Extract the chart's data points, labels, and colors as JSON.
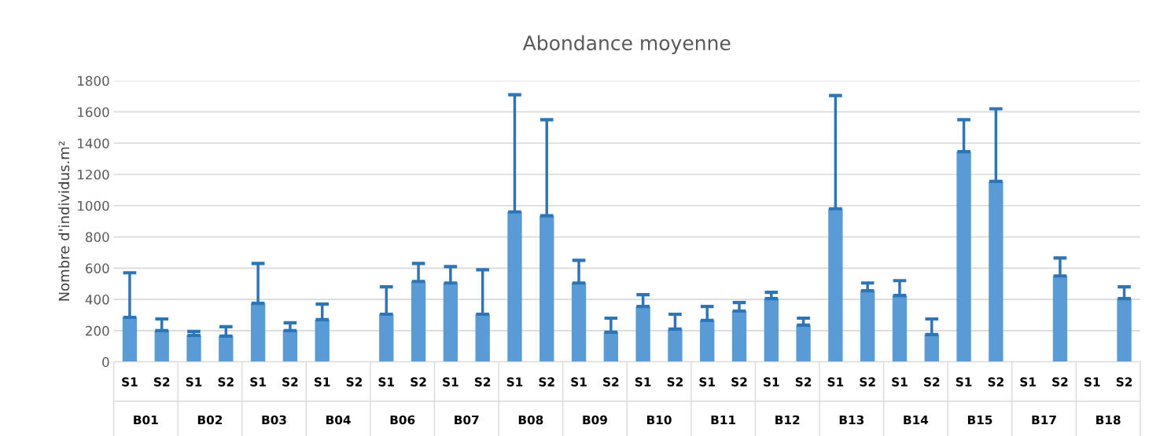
{
  "chart_data": {
    "type": "bar",
    "title": "Abondance moyenne",
    "ylabel": "Nombre d'individus.m²",
    "categories": [
      "S1",
      "S2",
      "S1",
      "S2",
      "S1",
      "S2",
      "S1",
      "S2",
      "S1",
      "S2",
      "S1",
      "S2",
      "S1",
      "S2",
      "S1",
      "S2",
      "S1",
      "S2",
      "S1",
      "S2",
      "S1",
      "S2",
      "S1",
      "S2",
      "S1",
      "S2",
      "S1",
      "S2",
      "S1",
      "S2",
      "S1",
      "S2"
    ],
    "annotations": [
      "B01",
      "B02",
      "B03",
      "B04",
      "B06",
      "B07",
      "B08",
      "B09",
      "B10",
      "B11",
      "B12",
      "B13",
      "B14",
      "B15",
      "B17",
      "B18"
    ],
    "color": "#5b9bd5",
    "values": [
      285,
      200,
      170,
      165,
      375,
      200,
      270,
      null,
      305,
      515,
      505,
      305,
      960,
      935,
      505,
      190,
      355,
      210,
      265,
      325,
      405,
      235,
      980,
      455,
      425,
      175,
      1345,
      1155,
      null,
      550,
      null,
      405
    ],
    "errors": [
      [
        285,
        570
      ],
      [
        200,
        275
      ],
      [
        170,
        195
      ],
      [
        165,
        225
      ],
      [
        375,
        630
      ],
      [
        200,
        250
      ],
      [
        270,
        370
      ],
      null,
      [
        305,
        480
      ],
      [
        515,
        630
      ],
      [
        505,
        610
      ],
      [
        305,
        590
      ],
      [
        960,
        1710
      ],
      [
        935,
        1550
      ],
      [
        505,
        650
      ],
      [
        190,
        280
      ],
      [
        355,
        430
      ],
      [
        210,
        305
      ],
      [
        265,
        355
      ],
      [
        325,
        380
      ],
      [
        405,
        445
      ],
      [
        235,
        280
      ],
      [
        980,
        1705
      ],
      [
        455,
        505
      ],
      [
        425,
        520
      ],
      [
        175,
        275
      ],
      [
        1345,
        1550
      ],
      [
        1155,
        1620
      ],
      null,
      [
        550,
        665
      ],
      null,
      [
        405,
        480
      ]
    ],
    "ylim": [
      0,
      1800
    ],
    "yticks": [
      0,
      200,
      400,
      600,
      800,
      1000,
      1200,
      1400,
      1600,
      1800
    ],
    "grid": "y"
  }
}
